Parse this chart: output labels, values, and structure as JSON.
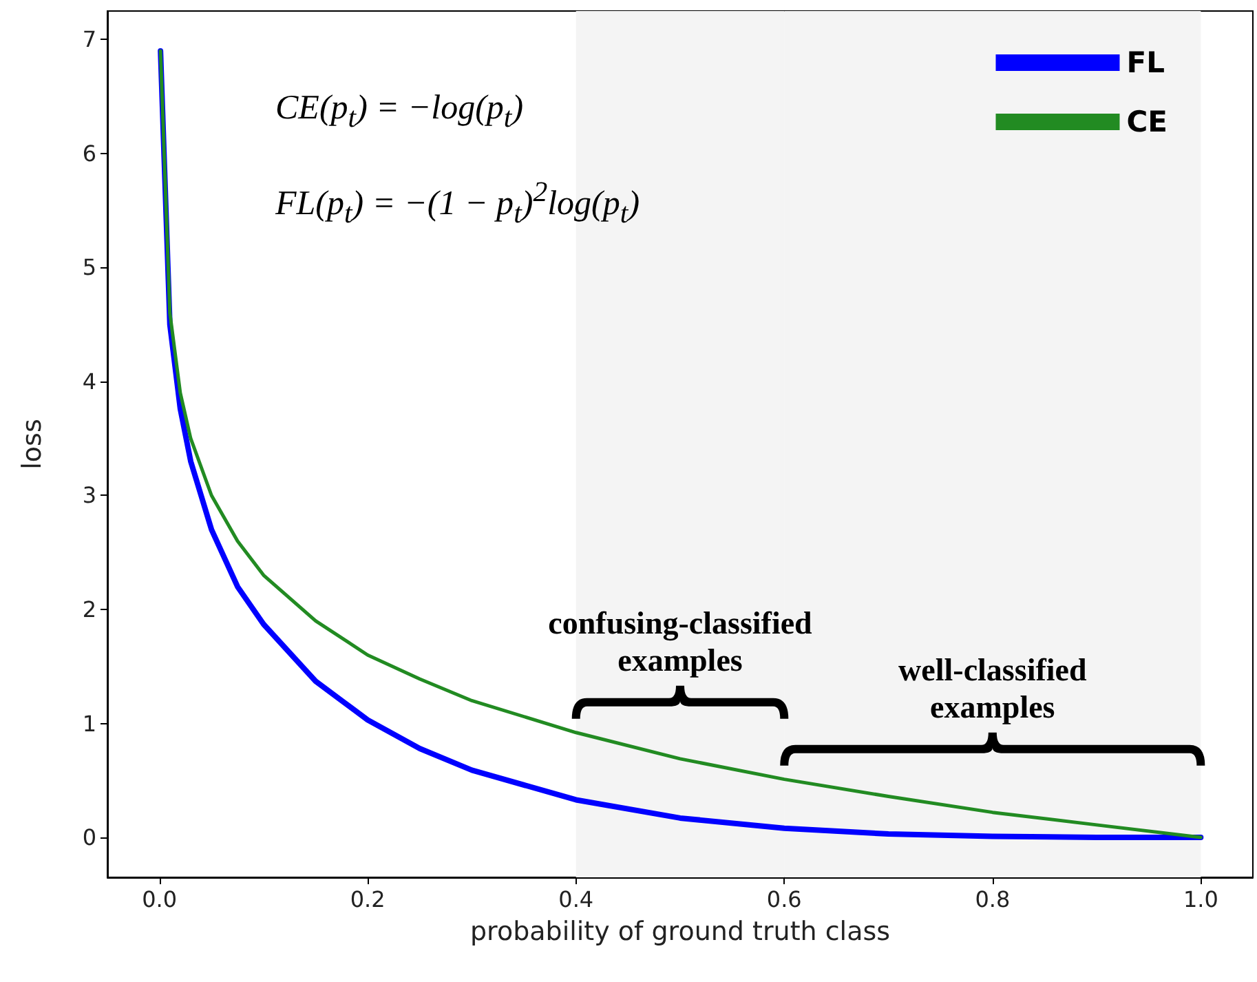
{
  "chart_data": {
    "type": "line",
    "xlabel": "probability of ground truth class",
    "ylabel": "loss",
    "x": [
      0.001,
      0.01,
      0.02,
      0.03,
      0.05,
      0.075,
      0.1,
      0.15,
      0.2,
      0.25,
      0.3,
      0.4,
      0.5,
      0.6,
      0.7,
      0.8,
      0.9,
      1.0
    ],
    "series": [
      {
        "name": "FL",
        "color": "#0000ff",
        "values": [
          6.9,
          4.5,
          3.76,
          3.3,
          2.7,
          2.2,
          1.87,
          1.37,
          1.03,
          0.78,
          0.59,
          0.33,
          0.17,
          0.08,
          0.03,
          0.01,
          0.0,
          0.0
        ]
      },
      {
        "name": "CE",
        "color": "#228b22",
        "values": [
          6.9,
          4.6,
          3.9,
          3.5,
          3.0,
          2.6,
          2.3,
          1.9,
          1.6,
          1.39,
          1.2,
          0.92,
          0.69,
          0.51,
          0.36,
          0.22,
          0.11,
          0.0
        ]
      }
    ],
    "xlim": [
      -0.05,
      1.05
    ],
    "xticks": [
      {
        "value": 0,
        "label": "0.0"
      },
      {
        "value": 0.2,
        "label": "0.2"
      },
      {
        "value": 0.4,
        "label": "0.4"
      },
      {
        "value": 0.6,
        "label": "0.6"
      },
      {
        "value": 0.8,
        "label": "0.8"
      },
      {
        "value": 1,
        "label": "1.0"
      }
    ],
    "ylim": [
      -0.35,
      7.25
    ],
    "yticks": [
      0,
      1,
      2,
      3,
      4,
      5,
      6,
      7
    ],
    "grid": false,
    "legend": "top right",
    "marker": "none",
    "line_style": "solid",
    "annotations": [
      "CE(p$_{t}$) = −log(p$_{t}$)",
      "FL(p$_{t}$) = −(1 − p$_{t}$)$^{2}$log(p$_{t}$)"
    ],
    "bands": [
      {
        "axis": "x",
        "from": 0.4,
        "to": 0.6,
        "label": "confusing-classified\nexamples",
        "color": "#f4f4f4"
      },
      {
        "axis": "x",
        "from": 0.6,
        "to": 1.0,
        "label": "well-classified\nexamples",
        "color": "#f4f4f4"
      }
    ]
  }
}
